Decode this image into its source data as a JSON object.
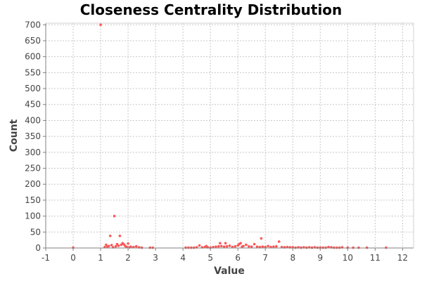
{
  "chart_data": {
    "type": "scatter",
    "title": "Closeness Centrality Distribution",
    "xlabel": "Value",
    "ylabel": "Count",
    "xlim": [
      -1,
      12.4
    ],
    "ylim": [
      0,
      705
    ],
    "x_ticks": [
      -1,
      0,
      1,
      2,
      3,
      4,
      5,
      6,
      7,
      8,
      9,
      10,
      11,
      12
    ],
    "y_ticks": [
      0,
      50,
      100,
      150,
      200,
      250,
      300,
      350,
      400,
      450,
      500,
      550,
      600,
      650,
      700
    ],
    "grid": true,
    "legend": "none",
    "point_color": "#ff5555",
    "series": [
      {
        "points": [
          [
            0.0,
            1
          ],
          [
            1.0,
            700
          ],
          [
            1.15,
            3
          ],
          [
            1.2,
            10
          ],
          [
            1.25,
            4
          ],
          [
            1.3,
            6
          ],
          [
            1.35,
            38
          ],
          [
            1.4,
            9
          ],
          [
            1.45,
            2
          ],
          [
            1.5,
            100
          ],
          [
            1.55,
            5
          ],
          [
            1.6,
            12
          ],
          [
            1.65,
            7
          ],
          [
            1.7,
            38
          ],
          [
            1.75,
            10
          ],
          [
            1.8,
            15
          ],
          [
            1.85,
            11
          ],
          [
            1.9,
            6
          ],
          [
            1.95,
            3
          ],
          [
            2.0,
            14
          ],
          [
            2.05,
            2
          ],
          [
            2.1,
            4
          ],
          [
            2.2,
            3
          ],
          [
            2.3,
            5
          ],
          [
            2.4,
            2
          ],
          [
            2.5,
            1
          ],
          [
            2.8,
            1
          ],
          [
            2.9,
            1
          ],
          [
            4.1,
            1
          ],
          [
            4.2,
            1
          ],
          [
            4.3,
            1
          ],
          [
            4.4,
            1
          ],
          [
            4.5,
            2
          ],
          [
            4.6,
            8
          ],
          [
            4.7,
            2
          ],
          [
            4.8,
            3
          ],
          [
            4.85,
            6
          ],
          [
            4.9,
            2
          ],
          [
            5.0,
            1
          ],
          [
            5.1,
            3
          ],
          [
            5.2,
            4
          ],
          [
            5.3,
            5
          ],
          [
            5.35,
            15
          ],
          [
            5.4,
            6
          ],
          [
            5.5,
            4
          ],
          [
            5.55,
            15
          ],
          [
            5.6,
            5
          ],
          [
            5.7,
            7
          ],
          [
            5.8,
            3
          ],
          [
            5.9,
            5
          ],
          [
            6.0,
            8
          ],
          [
            6.05,
            12
          ],
          [
            6.1,
            15
          ],
          [
            6.15,
            4
          ],
          [
            6.2,
            6
          ],
          [
            6.3,
            10
          ],
          [
            6.4,
            5
          ],
          [
            6.5,
            4
          ],
          [
            6.6,
            12
          ],
          [
            6.7,
            4
          ],
          [
            6.8,
            3
          ],
          [
            6.85,
            30
          ],
          [
            6.9,
            4
          ],
          [
            7.0,
            3
          ],
          [
            7.1,
            6
          ],
          [
            7.2,
            3
          ],
          [
            7.3,
            4
          ],
          [
            7.4,
            5
          ],
          [
            7.5,
            20
          ],
          [
            7.6,
            3
          ],
          [
            7.7,
            2
          ],
          [
            7.8,
            3
          ],
          [
            7.9,
            2
          ],
          [
            8.0,
            2
          ],
          [
            8.1,
            1
          ],
          [
            8.2,
            2
          ],
          [
            8.3,
            1
          ],
          [
            8.4,
            2
          ],
          [
            8.5,
            1
          ],
          [
            8.6,
            2
          ],
          [
            8.7,
            1
          ],
          [
            8.8,
            2
          ],
          [
            8.9,
            1
          ],
          [
            9.0,
            1
          ],
          [
            9.1,
            1
          ],
          [
            9.2,
            1
          ],
          [
            9.3,
            3
          ],
          [
            9.4,
            2
          ],
          [
            9.5,
            1
          ],
          [
            9.6,
            1
          ],
          [
            9.7,
            1
          ],
          [
            9.8,
            2
          ],
          [
            10.0,
            1
          ],
          [
            10.2,
            1
          ],
          [
            10.4,
            1
          ],
          [
            10.7,
            1
          ],
          [
            11.4,
            1
          ]
        ]
      }
    ]
  }
}
